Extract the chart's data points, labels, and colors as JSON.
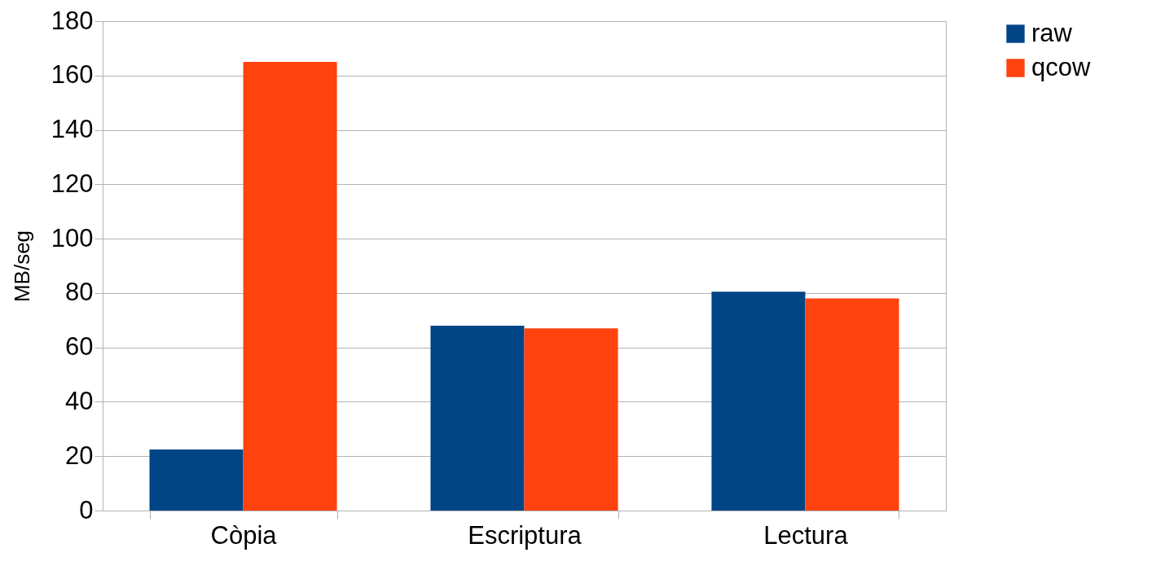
{
  "chart_data": {
    "type": "bar",
    "ylabel": "MB/seg",
    "categories": [
      "Còpia",
      "Escriptura",
      "Lectura"
    ],
    "series": [
      {
        "name": "raw",
        "color": "#004586",
        "values": [
          22.5,
          68,
          80.5
        ]
      },
      {
        "name": "qcow",
        "color": "#ff420e",
        "values": [
          165,
          67,
          78
        ]
      }
    ],
    "ylim": [
      0,
      180
    ],
    "yticks": [
      0,
      20,
      40,
      60,
      80,
      100,
      120,
      140,
      160,
      180
    ],
    "grid": "y",
    "legend": "right"
  }
}
